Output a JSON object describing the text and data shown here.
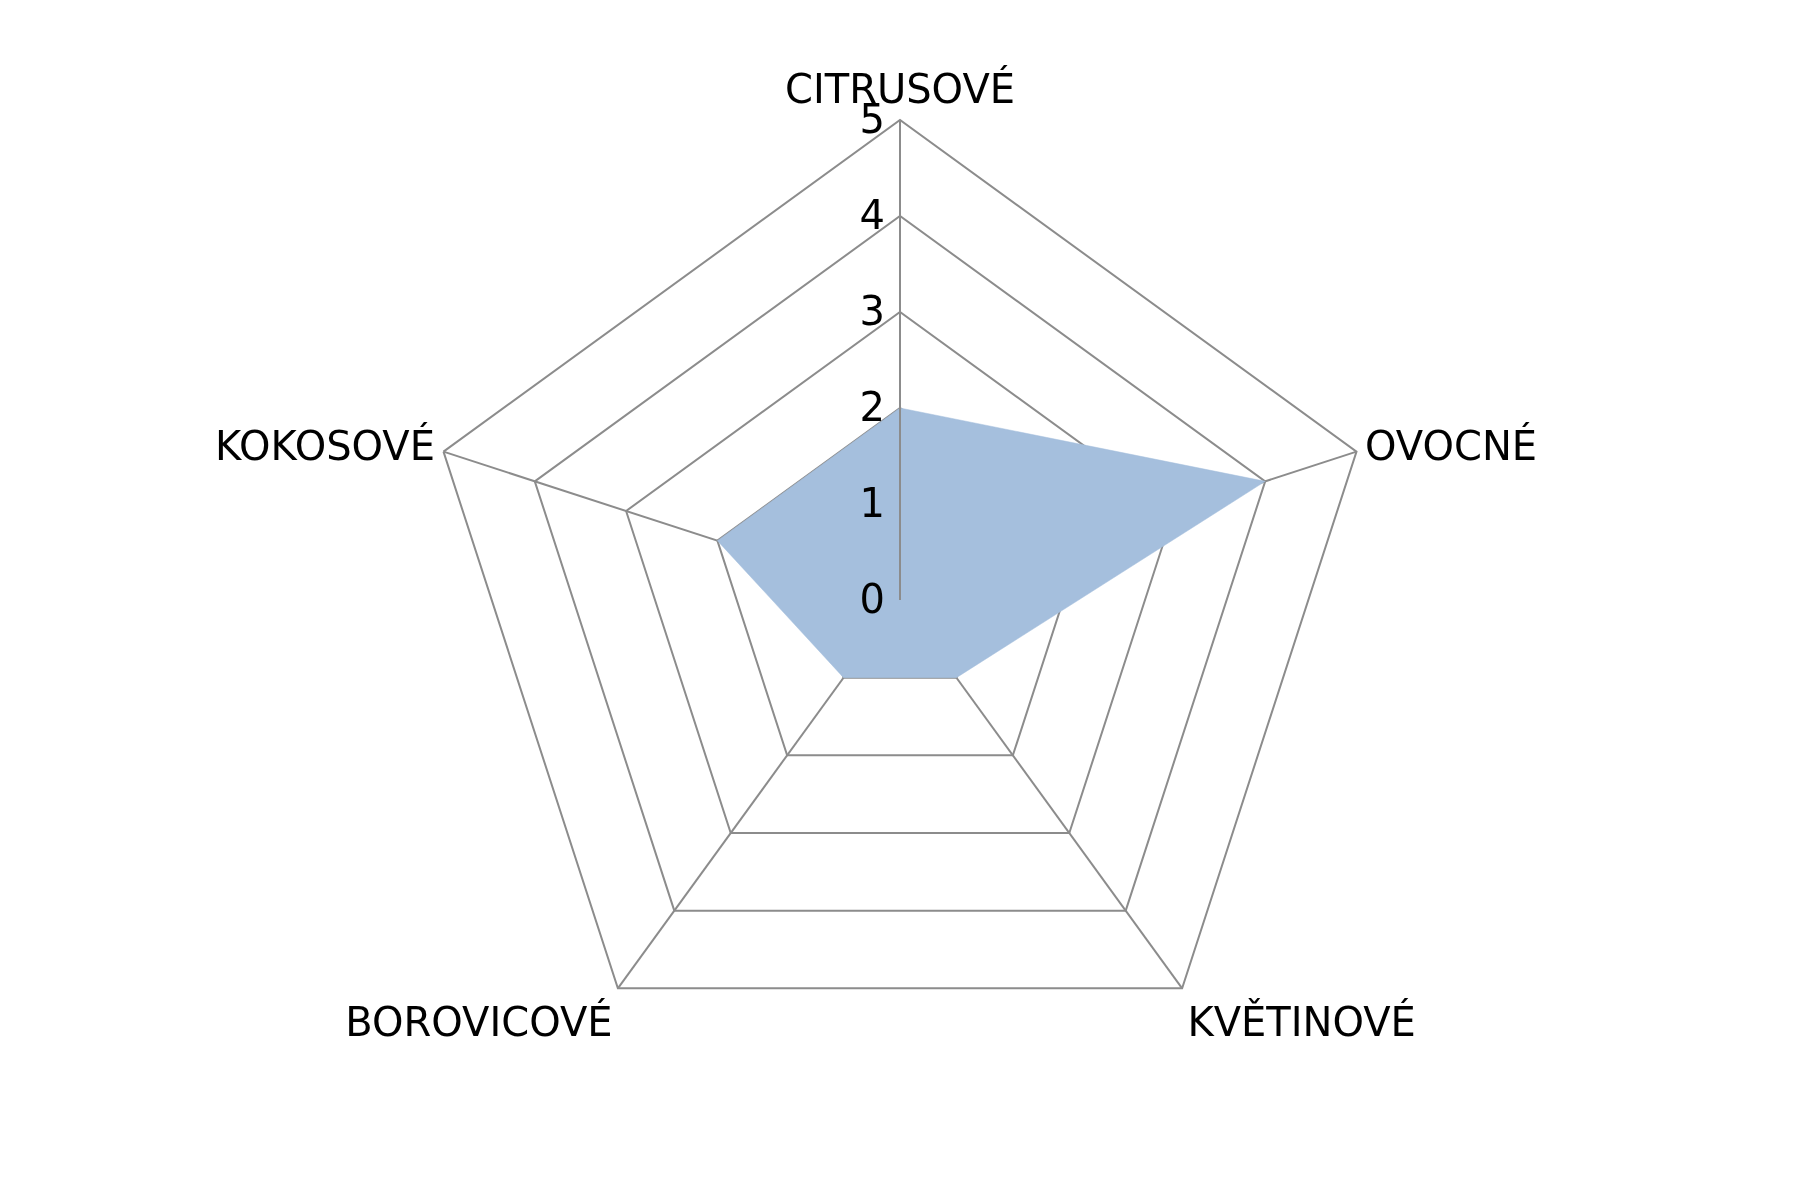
{
  "chart_data": {
    "type": "radar",
    "categories": [
      "CITRUSOVÉ",
      "OVOCNÉ",
      "KVĚTINOVÉ",
      "BOROVICOVÉ",
      "KOKOSOVÉ"
    ],
    "series": [
      {
        "color": "#a5bfdd",
        "values": [
          2,
          4,
          1,
          1,
          2
        ]
      }
    ],
    "ylim": [
      0,
      5
    ],
    "yticks": [
      0,
      1,
      2,
      3,
      4,
      5
    ],
    "grid": true
  }
}
